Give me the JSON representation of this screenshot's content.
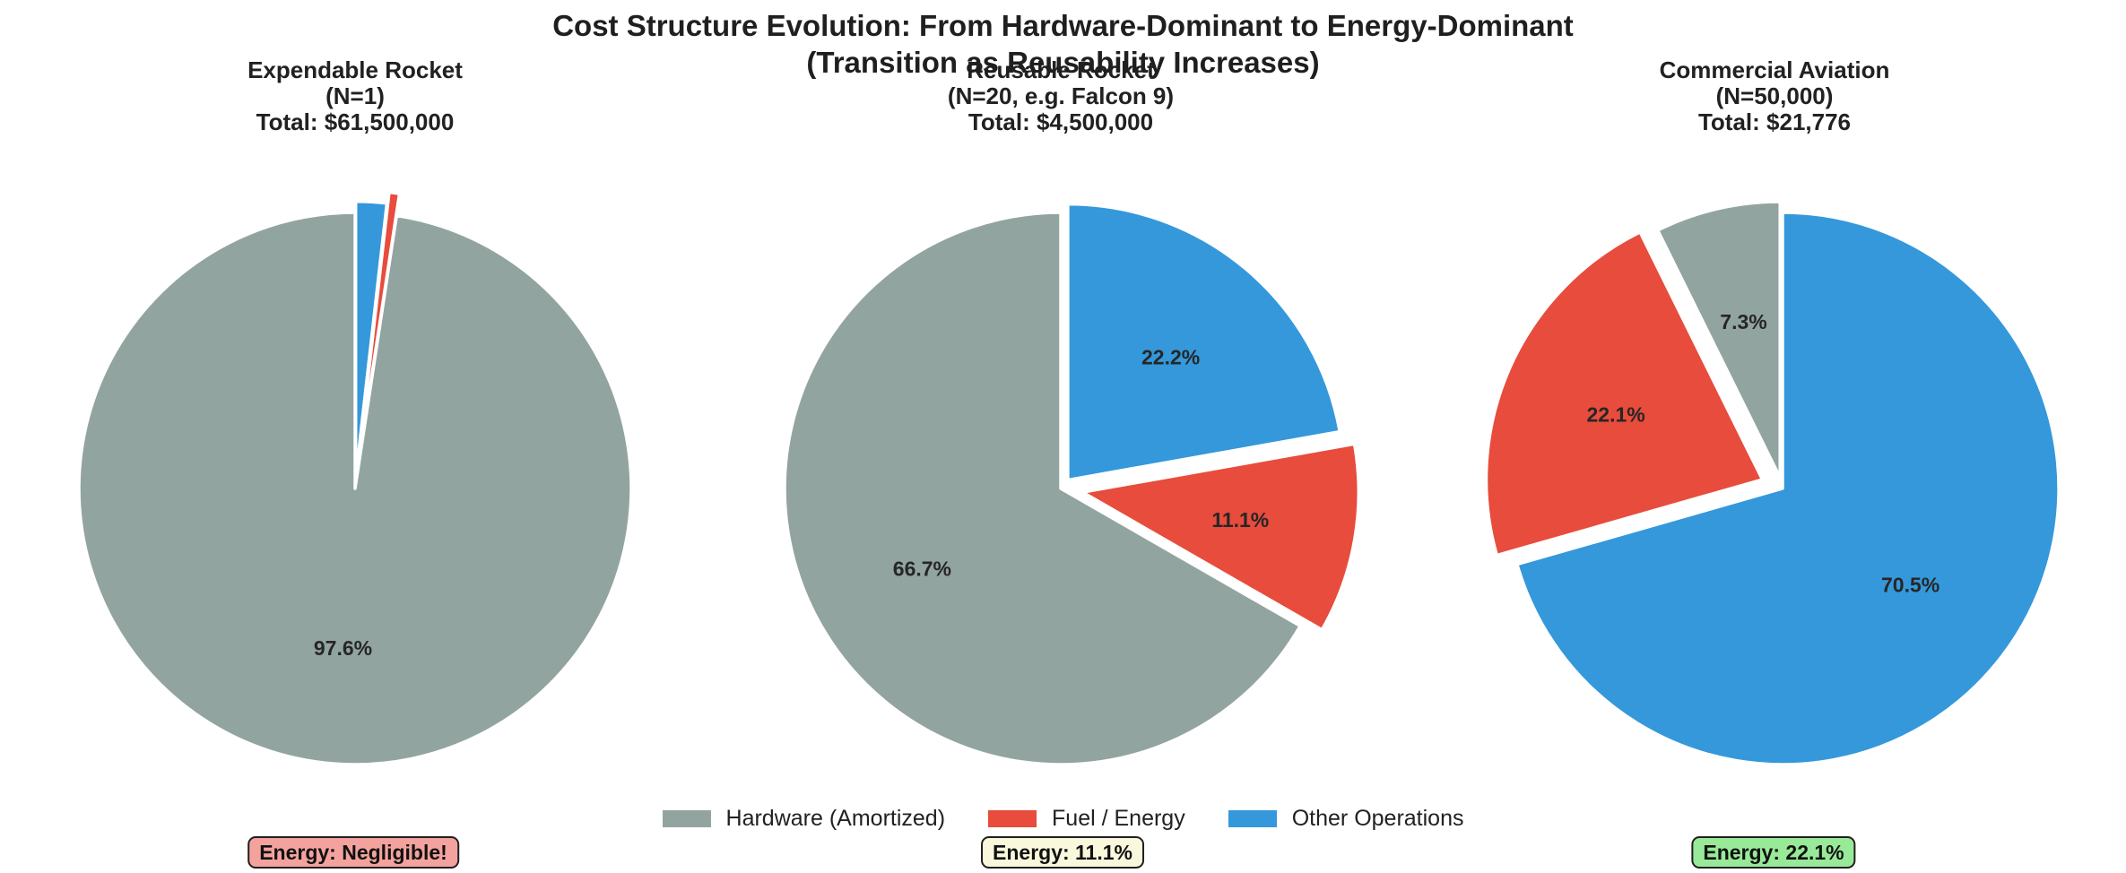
{
  "title": {
    "line1": "Cost Structure Evolution: From Hardware-Dominant to Energy-Dominant",
    "line2": "(Transition as Reusability Increases)"
  },
  "legend": {
    "items": [
      {
        "label": "Hardware (Amortized)",
        "color": "#92a4a0"
      },
      {
        "label": "Fuel / Energy",
        "color": "#e74c3c"
      },
      {
        "label": "Other Operations",
        "color": "#3498db"
      }
    ]
  },
  "chart_data": [
    {
      "type": "pie",
      "title": "Expendable Rocket",
      "subtitle": "(N=1)",
      "total": "Total: $61,500,000",
      "categories": [
        "Hardware (Amortized)",
        "Fuel / Energy",
        "Other Operations"
      ],
      "values": [
        97.6,
        0.6,
        1.8
      ],
      "labels": [
        "97.6%",
        "",
        ""
      ],
      "explode": [
        0,
        0.08,
        0.04
      ],
      "start_angle": 90,
      "counterclockwise": true,
      "annotation": {
        "text": "Energy: Negligible!",
        "bg": "#f4a29d"
      }
    },
    {
      "type": "pie",
      "title": "Reusable Rocket",
      "subtitle": "(N=20, e.g. Falcon 9)",
      "total": "Total: $4,500,000",
      "categories": [
        "Hardware (Amortized)",
        "Fuel / Energy",
        "Other Operations"
      ],
      "values": [
        66.7,
        11.1,
        22.2
      ],
      "labels": [
        "66.7%",
        "11.1%",
        "22.2%"
      ],
      "explode": [
        0,
        0.08,
        0.04
      ],
      "start_angle": 90,
      "counterclockwise": true,
      "annotation": {
        "text": "Energy: 11.1%",
        "bg": "#faf8dc"
      }
    },
    {
      "type": "pie",
      "title": "Commercial Aviation",
      "subtitle": "(N=50,000)",
      "total": "Total: $21,776",
      "categories": [
        "Hardware (Amortized)",
        "Fuel / Energy",
        "Other Operations"
      ],
      "values": [
        7.3,
        22.1,
        70.5
      ],
      "labels": [
        "7.3%",
        "22.1%",
        "70.5%"
      ],
      "explode": [
        0.04,
        0.08,
        0
      ],
      "start_angle": 90,
      "counterclockwise": true,
      "annotation": {
        "text": "Energy: 22.1%",
        "bg": "#98e998"
      }
    }
  ]
}
